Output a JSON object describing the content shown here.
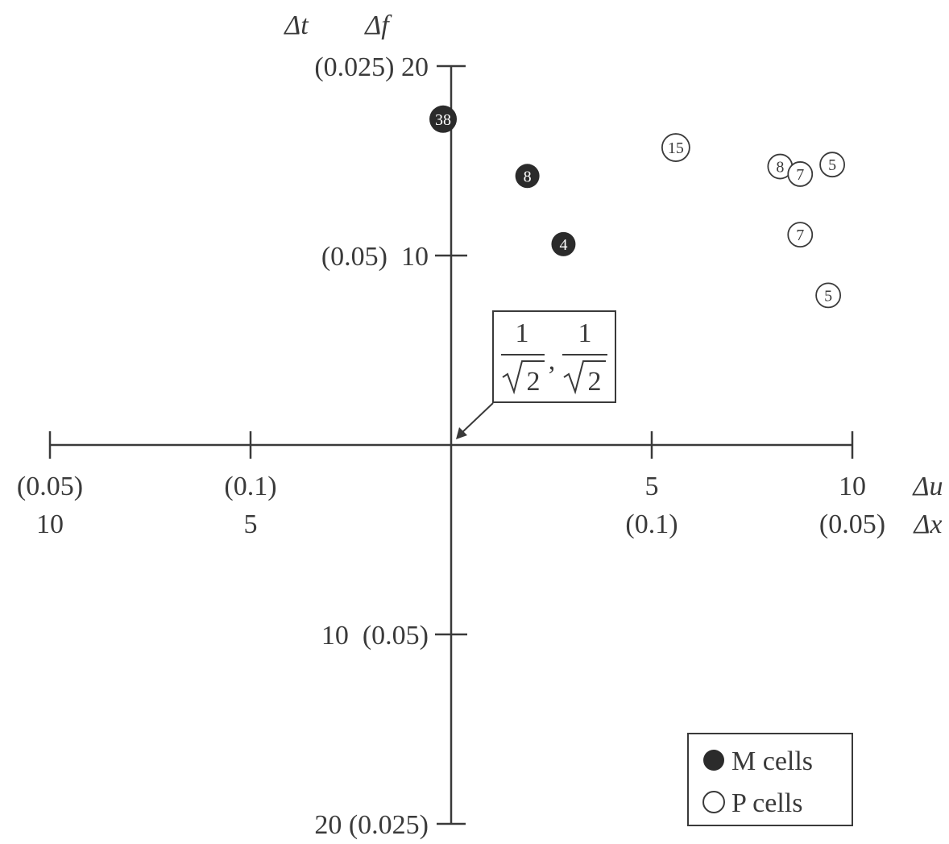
{
  "chart_data": {
    "type": "scatter",
    "x_axis": {
      "label_top": "Δu",
      "label_bottom": "Δx",
      "ticks": [
        {
          "x": -10,
          "top": "(0.05)",
          "bottom": "10"
        },
        {
          "x": -5,
          "top": "(0.1)",
          "bottom": "5"
        },
        {
          "x": 5,
          "top": "5",
          "bottom": "(0.1)"
        },
        {
          "x": 10,
          "top": "10",
          "bottom": "(0.05)"
        }
      ],
      "range": [
        -10,
        10
      ]
    },
    "y_axis": {
      "label_left": "Δt",
      "label_right": "Δf",
      "ticks": [
        {
          "y": 20,
          "text": "(0.025) 20"
        },
        {
          "y": 10,
          "text": "(0.05)  10"
        },
        {
          "y": -10,
          "text": "10  (0.05)"
        },
        {
          "y": -20,
          "text": "20 (0.025)"
        }
      ],
      "range": [
        -20,
        20
      ]
    },
    "annotation": {
      "numerator": "1",
      "radicand": "2",
      "separator": ",",
      "x": 0,
      "y": 0
    },
    "series": [
      {
        "name": "M cells",
        "color": "#2b2b2b",
        "filled": true,
        "points": [
          {
            "x": -0.2,
            "y": 17.2,
            "label": "38"
          },
          {
            "x": 1.9,
            "y": 14.2,
            "label": "8"
          },
          {
            "x": 2.8,
            "y": 10.6,
            "label": "4"
          }
        ]
      },
      {
        "name": "P cells",
        "color": "#3a3a3a",
        "filled": false,
        "points": [
          {
            "x": 5.6,
            "y": 15.7,
            "label": "15"
          },
          {
            "x": 8.2,
            "y": 14.7,
            "label": "8"
          },
          {
            "x": 8.7,
            "y": 14.3,
            "label": "7"
          },
          {
            "x": 9.5,
            "y": 14.8,
            "label": "5"
          },
          {
            "x": 8.7,
            "y": 11.1,
            "label": "7"
          },
          {
            "x": 9.4,
            "y": 7.9,
            "label": "5"
          }
        ]
      }
    ],
    "legend": {
      "position": "bottom-right",
      "entries": [
        {
          "label": "M cells",
          "filled": true
        },
        {
          "label": "P cells",
          "filled": false
        }
      ]
    },
    "grid": false
  }
}
